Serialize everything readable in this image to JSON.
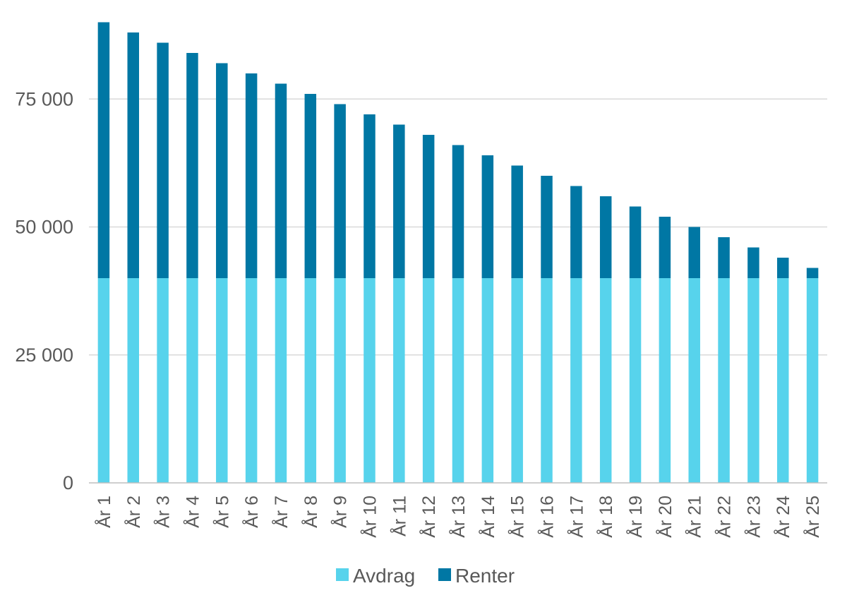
{
  "chart_data": {
    "type": "bar",
    "stacked": true,
    "title": "",
    "xlabel": "",
    "ylabel": "",
    "categories": [
      "År 1",
      "År 2",
      "År 3",
      "År 4",
      "År 5",
      "År 6",
      "År 7",
      "År 8",
      "År 9",
      "År 10",
      "År 11",
      "År 12",
      "År 13",
      "År 14",
      "År 15",
      "År 16",
      "År 17",
      "År 18",
      "År 19",
      "År 20",
      "År 21",
      "År 22",
      "År 23",
      "År 24",
      "År 25"
    ],
    "series": [
      {
        "name": "Avdrag",
        "color": "#57d3ec",
        "values": [
          40000,
          40000,
          40000,
          40000,
          40000,
          40000,
          40000,
          40000,
          40000,
          40000,
          40000,
          40000,
          40000,
          40000,
          40000,
          40000,
          40000,
          40000,
          40000,
          40000,
          40000,
          40000,
          40000,
          40000,
          40000
        ]
      },
      {
        "name": "Renter",
        "color": "#0077a4",
        "values": [
          50000,
          48000,
          46000,
          44000,
          42000,
          40000,
          38000,
          36000,
          34000,
          32000,
          30000,
          28000,
          26000,
          24000,
          22000,
          20000,
          18000,
          16000,
          14000,
          12000,
          10000,
          8000,
          6000,
          4000,
          2000
        ]
      }
    ],
    "yticks": [
      0,
      25000,
      50000,
      75000
    ],
    "ytick_labels": [
      "0",
      "25 000",
      "50 000",
      "75 000"
    ],
    "ylim": [
      0,
      90000
    ],
    "grid": true,
    "legend_position": "bottom"
  }
}
